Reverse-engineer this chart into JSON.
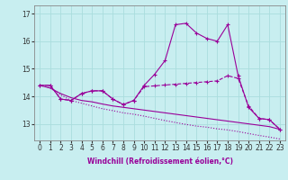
{
  "xlabel": "Windchill (Refroidissement éolien,°C)",
  "background_color": "#c8eef0",
  "grid_color": "#aadddd",
  "line_color": "#990099",
  "x": [
    0,
    1,
    2,
    3,
    4,
    5,
    6,
    7,
    8,
    9,
    10,
    11,
    12,
    13,
    14,
    15,
    16,
    17,
    18,
    19,
    20,
    21,
    22,
    23
  ],
  "series1": [
    14.4,
    14.4,
    13.9,
    13.85,
    14.1,
    14.2,
    14.2,
    13.9,
    13.7,
    13.85,
    14.4,
    14.8,
    15.3,
    16.6,
    16.65,
    16.3,
    16.1,
    16.0,
    16.6,
    14.75,
    13.6,
    13.2,
    13.15,
    12.8
  ],
  "series2": [
    14.4,
    14.4,
    13.9,
    13.85,
    14.1,
    14.2,
    14.2,
    13.9,
    13.7,
    13.85,
    14.35,
    14.38,
    14.41,
    14.44,
    14.47,
    14.5,
    14.53,
    14.56,
    14.75,
    14.65,
    13.65,
    13.2,
    13.15,
    12.8
  ],
  "series3": [
    14.4,
    14.3,
    14.05,
    13.85,
    13.75,
    13.65,
    13.55,
    13.48,
    13.4,
    13.35,
    13.28,
    13.2,
    13.12,
    13.05,
    12.98,
    12.92,
    12.88,
    12.82,
    12.78,
    12.72,
    12.65,
    12.58,
    12.52,
    12.45
  ],
  "series4": [
    14.4,
    14.3,
    14.1,
    13.95,
    13.85,
    13.8,
    13.72,
    13.65,
    13.6,
    13.55,
    13.5,
    13.45,
    13.4,
    13.35,
    13.3,
    13.25,
    13.2,
    13.15,
    13.1,
    13.05,
    13.0,
    12.95,
    12.9,
    12.8
  ],
  "ylim": [
    12.4,
    17.3
  ],
  "yticks": [
    13,
    14,
    15,
    16,
    17
  ],
  "xlim": [
    -0.5,
    23.5
  ],
  "label_fontsize": 5.5,
  "tick_fontsize": 5.5
}
